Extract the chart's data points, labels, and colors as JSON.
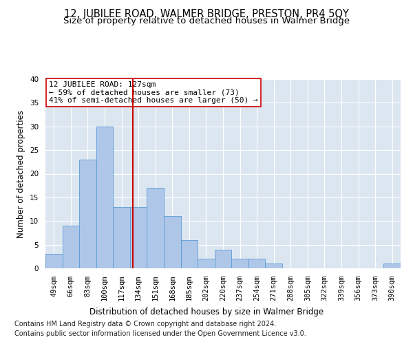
{
  "title": "12, JUBILEE ROAD, WALMER BRIDGE, PRESTON, PR4 5QY",
  "subtitle": "Size of property relative to detached houses in Walmer Bridge",
  "xlabel": "Distribution of detached houses by size in Walmer Bridge",
  "ylabel": "Number of detached properties",
  "categories": [
    "49sqm",
    "66sqm",
    "83sqm",
    "100sqm",
    "117sqm",
    "134sqm",
    "151sqm",
    "168sqm",
    "185sqm",
    "202sqm",
    "220sqm",
    "237sqm",
    "254sqm",
    "271sqm",
    "288sqm",
    "305sqm",
    "322sqm",
    "339sqm",
    "356sqm",
    "373sqm",
    "390sqm"
  ],
  "values": [
    3,
    9,
    23,
    30,
    13,
    13,
    17,
    11,
    6,
    2,
    4,
    2,
    2,
    1,
    0,
    0,
    0,
    0,
    0,
    0,
    1
  ],
  "bar_color": "#aec6e8",
  "bar_edge_color": "#5b9bd5",
  "background_color": "#dce6f1",
  "vline_x": 4.65,
  "vline_color": "#cc0000",
  "annotation_text": "12 JUBILEE ROAD: 127sqm\n← 59% of detached houses are smaller (73)\n41% of semi-detached houses are larger (50) →",
  "annotation_box_color": "#ffffff",
  "annotation_box_edge": "#cc0000",
  "footer_line1": "Contains HM Land Registry data © Crown copyright and database right 2024.",
  "footer_line2": "Contains public sector information licensed under the Open Government Licence v3.0.",
  "ylim": [
    0,
    40
  ],
  "yticks": [
    0,
    5,
    10,
    15,
    20,
    25,
    30,
    35,
    40
  ],
  "title_fontsize": 10.5,
  "subtitle_fontsize": 9.5,
  "axis_fontsize": 8.5,
  "tick_fontsize": 7.5,
  "footer_fontsize": 7.0,
  "annotation_fontsize": 8.0
}
